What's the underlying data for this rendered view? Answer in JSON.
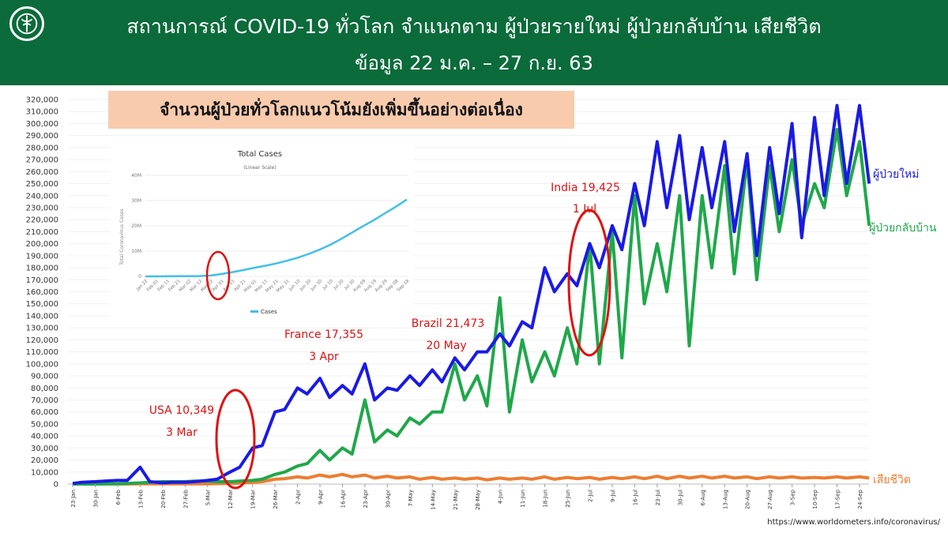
{
  "header": {
    "title": "สถานการณ์ COVID-19 ทั่วโลก จำแนกตาม ผู้ป่วยรายใหม่ ผู้ป่วยกลับบ้าน  เสียชีวิต",
    "subtitle": "ข้อมูล 22 ม.ค. – 27 ก.ย. 63"
  },
  "callout": "จำนวนผู้ป่วยทั่วโลกแนวโน้มยังเพิ่มขึ้นอย่างต่อเนื่อง",
  "source": "https://www.worldometers.info/coronavirus/",
  "colors": {
    "header": "#0b6b3a",
    "new_cases": "#1a1ae6",
    "recovered": "#1fa84a",
    "deaths": "#ed7d31",
    "annotation": "#e01010",
    "inset_line": "#3fc0ea",
    "callout_bg": "#f8cbad"
  },
  "chart_data": [
    {
      "type": "line",
      "ylim": [
        0,
        320000
      ],
      "yticks": [
        "0",
        "10,000",
        "20,000",
        "30,000",
        "40,000",
        "50,000",
        "60,000",
        "70,000",
        "80,000",
        "90,000",
        "100,000",
        "110,000",
        "120,000",
        "130,000",
        "140,000",
        "150,000",
        "160,000",
        "170,000",
        "180,000",
        "190,000",
        "200,000",
        "210,000",
        "220,000",
        "230,000",
        "240,000",
        "250,000",
        "260,000",
        "270,000",
        "280,000",
        "290,000",
        "300,000",
        "310,000",
        "320,000"
      ],
      "xticks": [
        "23-Jan",
        "30-Jan",
        "6-Feb",
        "13-Feb",
        "20-Feb",
        "27-Feb",
        "5-Mar",
        "12-Mar",
        "19-Mar",
        "26-Mar",
        "2-Apr",
        "9-Apr",
        "16-Apr",
        "23-Apr",
        "30-Apr",
        "7-May",
        "14-May",
        "21-May",
        "28-May",
        "4-Jun",
        "11-Jun",
        "18-Jun",
        "25-Jun",
        "2-Jul",
        "9-Jul",
        "16-Jul",
        "23-Jul",
        "30-Jul",
        "6-Aug",
        "13-Aug",
        "20-Aug",
        "27-Aug",
        "3-Sep",
        "10-Sep",
        "17-Sep",
        "24-Sep"
      ],
      "x": [
        "23-Jan",
        "26-Jan",
        "30-Jan",
        "2-Feb",
        "6-Feb",
        "9-Feb",
        "13-Feb",
        "16-Feb",
        "20-Feb",
        "23-Feb",
        "27-Feb",
        "1-Mar",
        "5-Mar",
        "8-Mar",
        "12-Mar",
        "15-Mar",
        "19-Mar",
        "22-Mar",
        "26-Mar",
        "29-Mar",
        "2-Apr",
        "5-Apr",
        "9-Apr",
        "12-Apr",
        "16-Apr",
        "19-Apr",
        "23-Apr",
        "26-Apr",
        "30-Apr",
        "3-May",
        "7-May",
        "10-May",
        "14-May",
        "17-May",
        "21-May",
        "24-May",
        "28-May",
        "31-May",
        "4-Jun",
        "7-Jun",
        "11-Jun",
        "14-Jun",
        "18-Jun",
        "21-Jun",
        "25-Jun",
        "28-Jun",
        "2-Jul",
        "5-Jul",
        "9-Jul",
        "12-Jul",
        "16-Jul",
        "19-Jul",
        "23-Jul",
        "26-Jul",
        "30-Jul",
        "2-Aug",
        "6-Aug",
        "9-Aug",
        "13-Aug",
        "16-Aug",
        "20-Aug",
        "23-Aug",
        "27-Aug",
        "30-Aug",
        "3-Sep",
        "6-Sep",
        "10-Sep",
        "13-Sep",
        "17-Sep",
        "20-Sep",
        "24-Sep",
        "27-Sep"
      ],
      "series": [
        {
          "name": "ผู้ป่วยใหม่",
          "color": "#1a1ae6",
          "values": [
            500,
            1500,
            2000,
            2500,
            3000,
            3000,
            14000,
            2000,
            1000,
            1500,
            1500,
            2000,
            3000,
            4000,
            10000,
            14000,
            30000,
            32000,
            60000,
            62000,
            80000,
            75000,
            88000,
            72000,
            82000,
            75000,
            100000,
            70000,
            80000,
            78000,
            90000,
            82000,
            95000,
            85000,
            105000,
            95000,
            110000,
            110000,
            125000,
            115000,
            135000,
            130000,
            180000,
            160000,
            175000,
            165000,
            200000,
            180000,
            215000,
            195000,
            250000,
            215000,
            285000,
            230000,
            290000,
            220000,
            280000,
            230000,
            285000,
            210000,
            275000,
            190000,
            280000,
            225000,
            300000,
            205000,
            305000,
            240000,
            315000,
            250000,
            315000,
            250000
          ]
        },
        {
          "name": "ผู้ป่วยกลับบ้าน",
          "color": "#1fa84a",
          "values": [
            0,
            0,
            0,
            100,
            200,
            500,
            1000,
            1500,
            2000,
            2000,
            2000,
            2500,
            2500,
            2000,
            2000,
            2500,
            3000,
            4000,
            8000,
            10000,
            15000,
            17000,
            28000,
            20000,
            30000,
            25000,
            70000,
            35000,
            45000,
            40000,
            55000,
            50000,
            60000,
            60000,
            100000,
            70000,
            90000,
            65000,
            155000,
            60000,
            120000,
            85000,
            110000,
            90000,
            130000,
            100000,
            200000,
            100000,
            210000,
            105000,
            240000,
            150000,
            200000,
            160000,
            240000,
            115000,
            240000,
            180000,
            265000,
            175000,
            270000,
            170000,
            265000,
            210000,
            270000,
            215000,
            250000,
            230000,
            295000,
            240000,
            285000,
            215000
          ]
        },
        {
          "name": "เสียชีวิต",
          "color": "#ed7d31",
          "values": [
            20,
            30,
            40,
            50,
            60,
            70,
            100,
            100,
            100,
            100,
            100,
            150,
            200,
            300,
            500,
            700,
            1500,
            2000,
            4000,
            4500,
            6000,
            5000,
            7500,
            6000,
            8000,
            6000,
            7500,
            5000,
            6500,
            5000,
            6000,
            4000,
            5500,
            4000,
            5000,
            4000,
            5000,
            3500,
            5000,
            4000,
            5000,
            4000,
            6000,
            4000,
            5500,
            4500,
            5500,
            4000,
            5500,
            4500,
            6000,
            4500,
            6500,
            4500,
            6500,
            5000,
            6500,
            5000,
            6500,
            5000,
            6000,
            4500,
            6000,
            5000,
            6000,
            5000,
            5500,
            5000,
            6000,
            5000,
            6000,
            5000
          ]
        }
      ],
      "annotations": [
        {
          "label": "USA 10,349",
          "date": "3 Mar"
        },
        {
          "label": "France 17,355",
          "date": "3 Apr"
        },
        {
          "label": "Brazil 21,473",
          "date": "20 May"
        },
        {
          "label": "India 19,425",
          "date": "1 Jul"
        }
      ]
    },
    {
      "type": "line",
      "title": "Total Cases",
      "subtitle": "(Linear Scale)",
      "ylabel": "Total Coronavirus Cases",
      "yticks": [
        "0",
        "10M",
        "20M",
        "30M",
        "40M"
      ],
      "ylim": [
        0,
        40
      ],
      "xticks": [
        "Jan 22",
        "Feb 01",
        "Feb 11",
        "Feb 21",
        "Mar 02",
        "Mar 12",
        "Mar 22",
        "Apr 01",
        "Apr 11",
        "Apr 21",
        "May 01",
        "May 11",
        "May 21",
        "May 31",
        "Jun 10",
        "Jun 20",
        "Jun 30",
        "Jul 10",
        "Jul 20",
        "Jul 30",
        "Aug 09",
        "Aug 19",
        "Aug 29",
        "Sep 08",
        "Sep 18"
      ],
      "series": [
        {
          "name": "Cases",
          "color": "#3fc0ea",
          "values_millions": [
            0,
            0.01,
            0.04,
            0.08,
            0.09,
            0.13,
            0.34,
            0.93,
            1.7,
            2.5,
            3.4,
            4.2,
            5.1,
            6.2,
            7.4,
            8.9,
            10.6,
            12.6,
            14.9,
            17.4,
            19.9,
            22.3,
            25.0,
            27.6,
            30.4
          ]
        }
      ]
    }
  ]
}
